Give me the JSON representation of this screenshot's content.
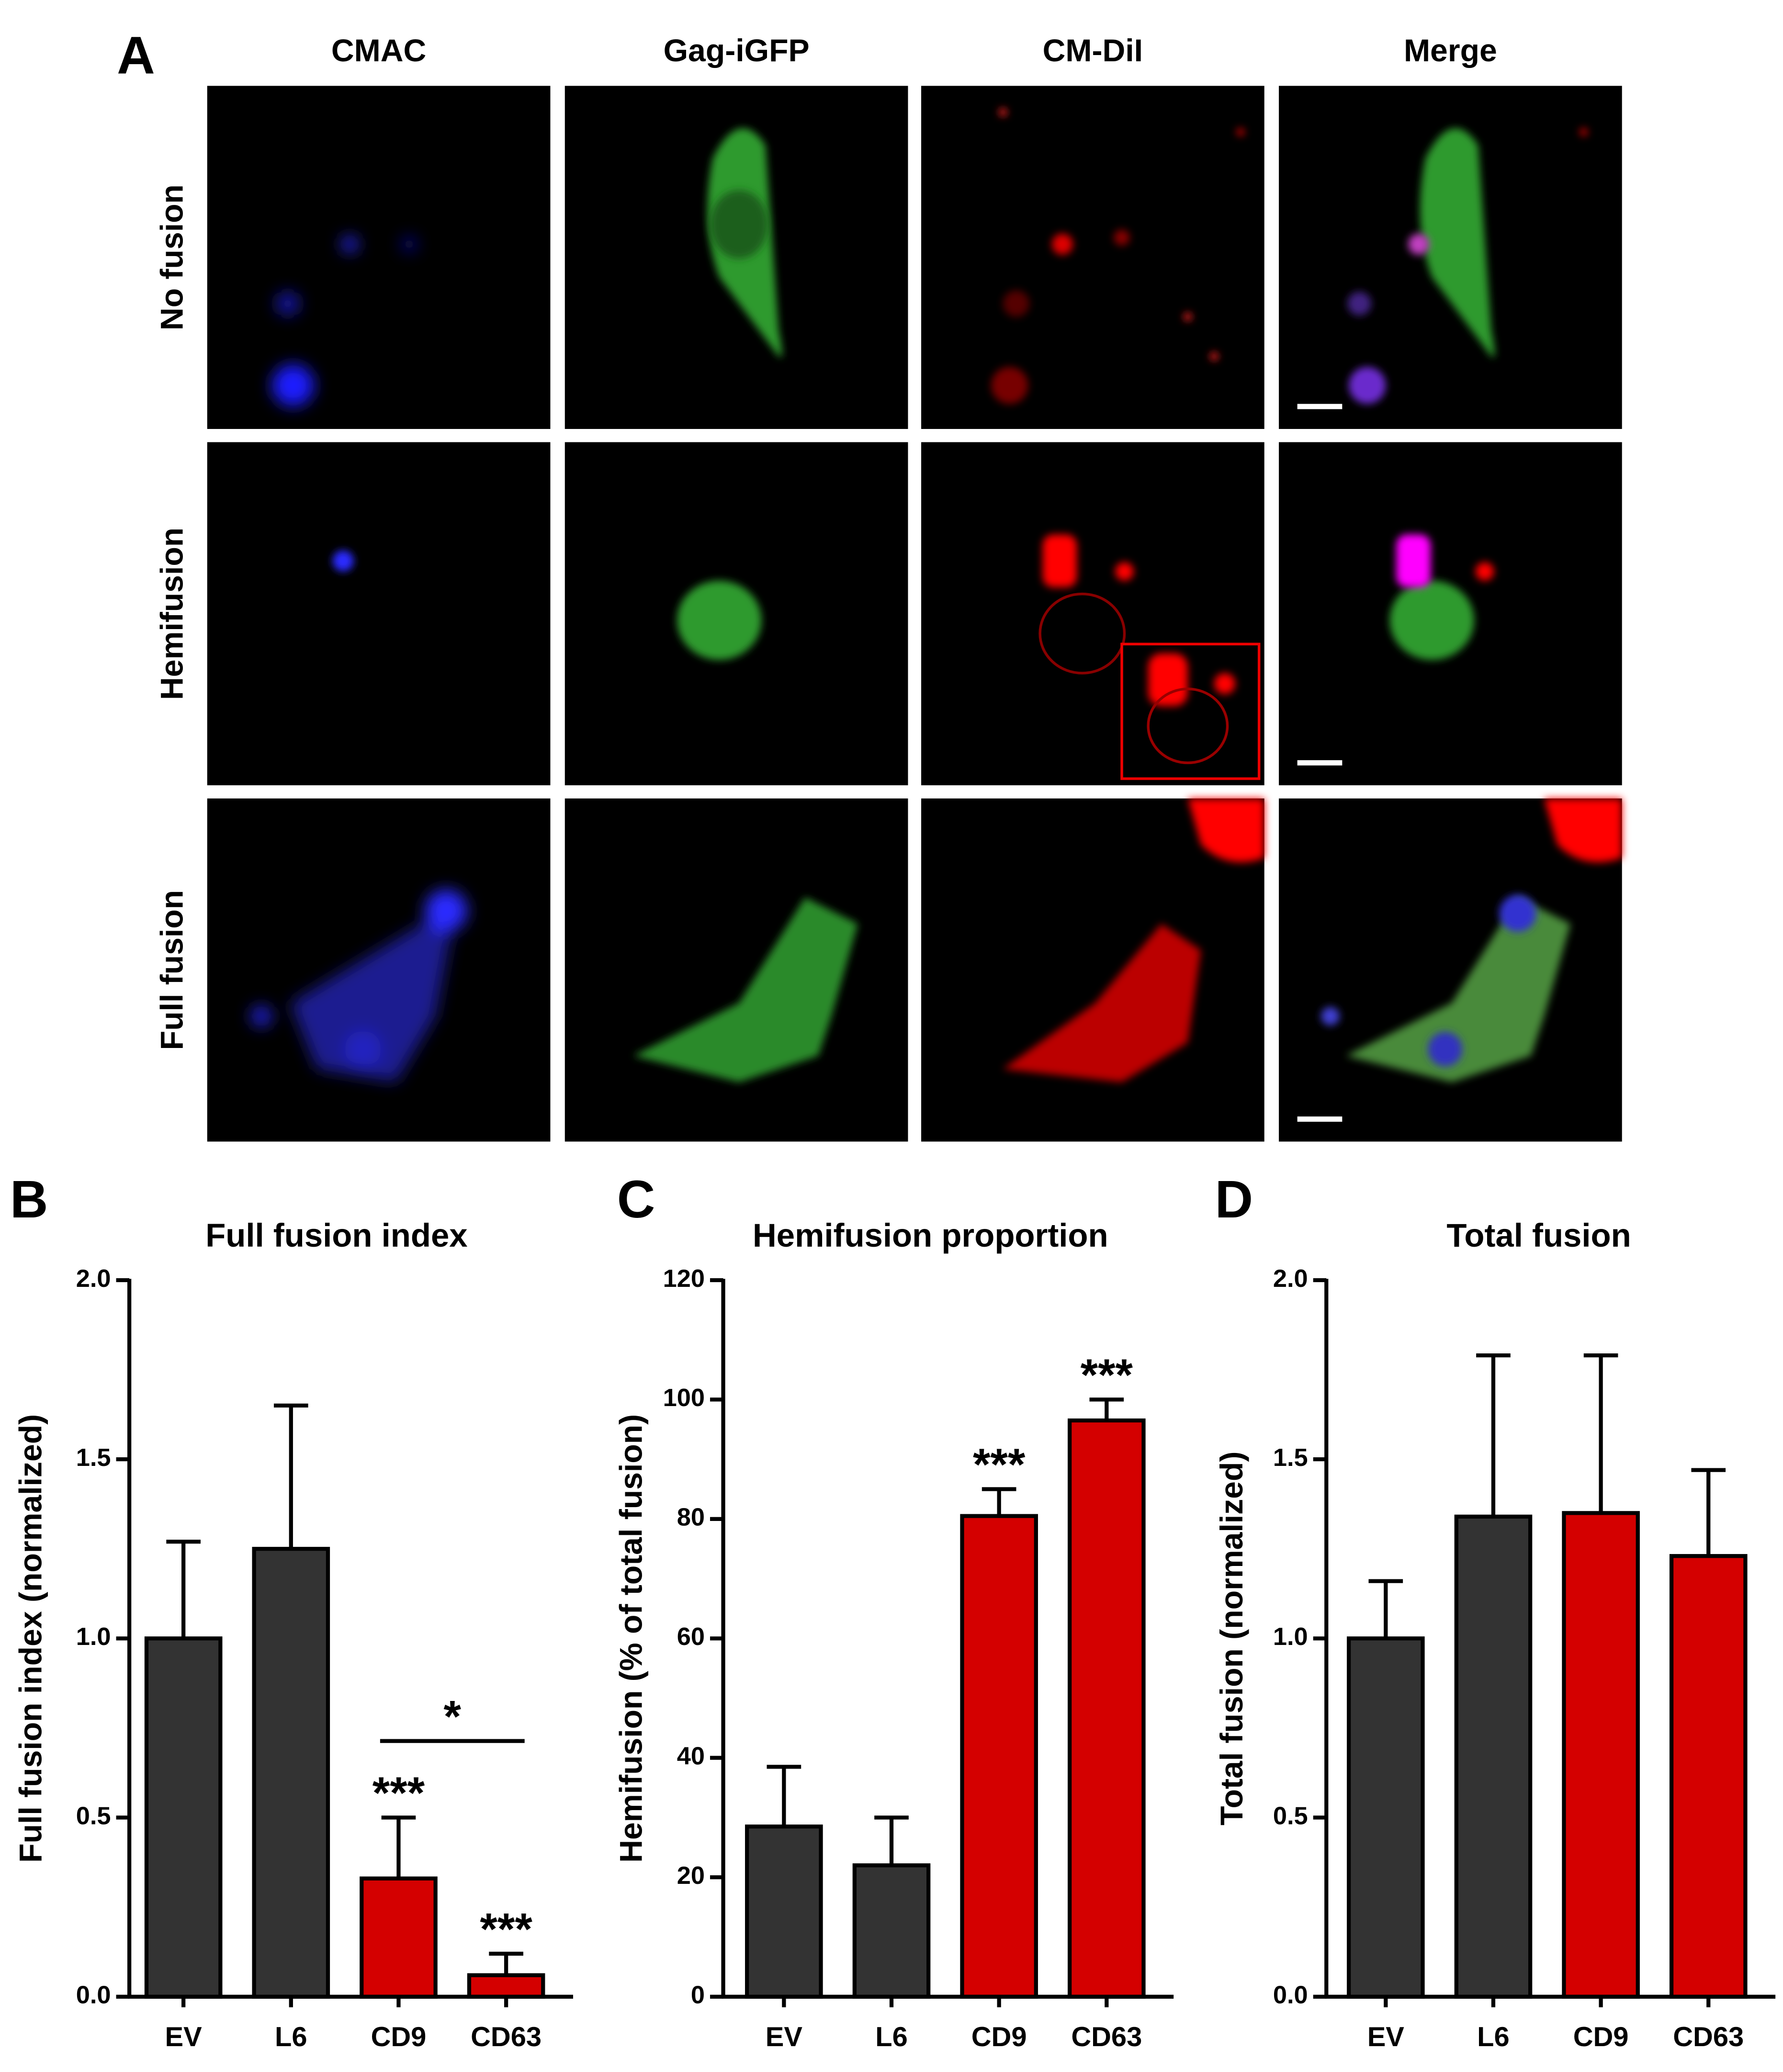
{
  "panel_a": {
    "letter": "A",
    "columns": [
      "CMAC",
      "Gag-iGFP",
      "CM-DiI",
      "Merge"
    ],
    "rows": [
      "No fusion",
      "Hemifusion",
      "Full fusion"
    ]
  },
  "chart_data": [
    {
      "type": "bar",
      "letter": "B",
      "title": "Full fusion index",
      "y_label": "Full fusion index (normalized)",
      "categories": [
        "EV",
        "L6",
        "CD9",
        "CD63"
      ],
      "values": [
        1.0,
        1.25,
        0.33,
        0.06
      ],
      "errors": [
        0.27,
        0.4,
        0.17,
        0.06
      ],
      "colors": [
        "#333333",
        "#333333",
        "#d40000",
        "#d40000"
      ],
      "ylim": [
        0,
        2
      ],
      "yticks": [
        {
          "value": 0,
          "label": "0.0"
        },
        {
          "value": 0.5,
          "label": "0.5"
        },
        {
          "value": 1,
          "label": "1.0"
        },
        {
          "value": 1.5,
          "label": "1.5"
        },
        {
          "value": 2,
          "label": "2.0"
        }
      ],
      "annotations": [
        {
          "text": "***",
          "category": "CD9"
        },
        {
          "text": "***",
          "category": "CD63"
        },
        {
          "text": "*",
          "from": "CD9",
          "to": "CD63"
        }
      ]
    },
    {
      "type": "bar",
      "letter": "C",
      "title": "Hemifusion proportion",
      "y_label": "Hemifusion (% of total fusion)",
      "categories": [
        "EV",
        "L6",
        "CD9",
        "CD63"
      ],
      "values": [
        28.5,
        22,
        80.5,
        96.5
      ],
      "errors": [
        10,
        8,
        4.5,
        3.5
      ],
      "colors": [
        "#333333",
        "#333333",
        "#d40000",
        "#d40000"
      ],
      "ylim": [
        0,
        120
      ],
      "yticks": [
        0,
        20,
        40,
        60,
        80,
        100,
        120
      ],
      "annotations": [
        {
          "text": "***",
          "category": "CD9"
        },
        {
          "text": "***",
          "category": "CD63"
        }
      ]
    },
    {
      "type": "bar",
      "letter": "D",
      "title": "Total fusion",
      "y_label": "Total fusion (normalized)",
      "categories": [
        "EV",
        "L6",
        "CD9",
        "CD63"
      ],
      "values": [
        1.0,
        1.34,
        1.35,
        1.23
      ],
      "errors": [
        0.16,
        0.45,
        0.44,
        0.24
      ],
      "colors": [
        "#333333",
        "#333333",
        "#d40000",
        "#d40000"
      ],
      "ylim": [
        0,
        2
      ],
      "yticks": [
        {
          "value": 0,
          "label": "0.0"
        },
        {
          "value": 0.5,
          "label": "0.5"
        },
        {
          "value": 1,
          "label": "1.0"
        },
        {
          "value": 1.5,
          "label": "1.5"
        },
        {
          "value": 2,
          "label": "2.0"
        }
      ],
      "annotations": []
    }
  ]
}
